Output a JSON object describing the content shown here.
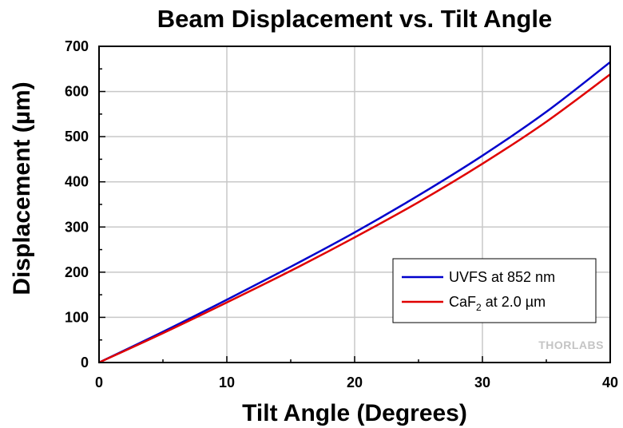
{
  "chart_data": {
    "type": "line",
    "title": "Beam Displacement vs. Tilt Angle",
    "xlabel": "Tilt Angle (Degrees)",
    "ylabel": "Displacement (µm)",
    "xlim": [
      0,
      40
    ],
    "ylim": [
      0,
      700
    ],
    "xticks": [
      0,
      10,
      20,
      30,
      40
    ],
    "yticks": [
      0,
      100,
      200,
      300,
      400,
      500,
      600,
      700
    ],
    "grid": true,
    "legend_position": "lower-right",
    "x": [
      0,
      5,
      10,
      15,
      20,
      25,
      30,
      35,
      40
    ],
    "series": [
      {
        "name": "UVFS at 852 nm",
        "color": "#0000cc",
        "values": [
          0,
          68,
          139,
          212,
          288,
          370,
          458,
          555,
          665
        ]
      },
      {
        "name": "CaF2 at 2.0 µm",
        "legend_main": "CaF",
        "legend_sub": "2",
        "legend_rest": " at 2.0 µm",
        "color": "#e00000",
        "values": [
          0,
          65,
          133,
          203,
          277,
          355,
          440,
          533,
          638
        ]
      }
    ],
    "watermark": "THORLABS"
  }
}
